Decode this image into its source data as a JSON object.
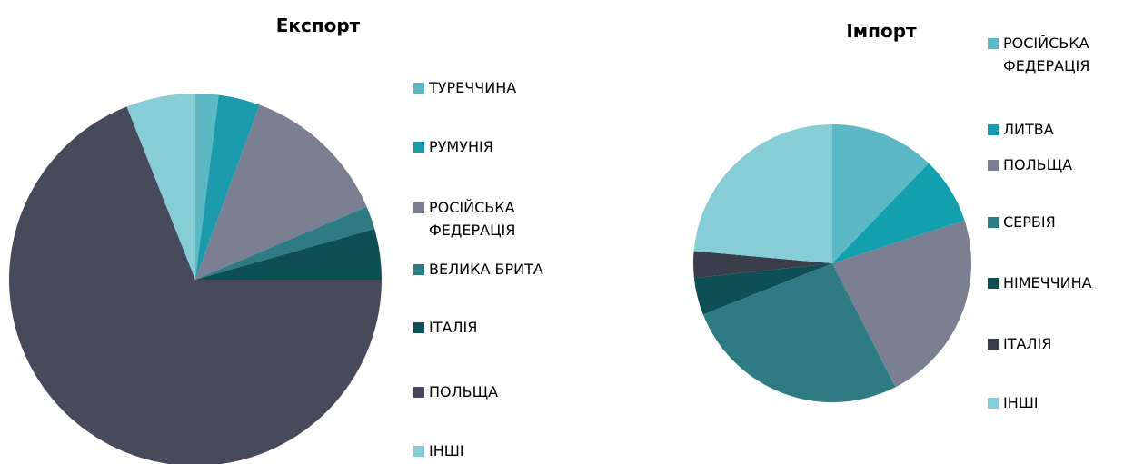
{
  "chart_data": [
    {
      "type": "pie",
      "title": "Експорт",
      "categories": [
        "ТУРЕЧЧИНА",
        "РУМУНІЯ",
        "РОСІЙСЬКА ФЕДЕРАЦІЯ",
        "ВЕЛИКА БРИТА",
        "ІТАЛІЯ",
        "ПОЛЬЩА",
        "ІНШІ"
      ],
      "values": [
        2,
        3.6,
        13,
        2,
        4.4,
        69,
        6
      ],
      "colors": [
        "#5bb8c4",
        "#1a9aaa",
        "#7a7f91",
        "#2e7b83",
        "#0d4f55",
        "#474a5a",
        "#86cdd6"
      ]
    },
    {
      "type": "pie",
      "title": "Імпорт",
      "categories": [
        "РОСІЙСЬКА ФЕДЕРАЦІЯ",
        "ЛИТВА",
        "ПОЛЬЩА",
        "СЕРБІЯ",
        "НІМЕЧЧИНА",
        "ІТАЛІЯ",
        "ІНШІ"
      ],
      "values": [
        12.2,
        7.8,
        22.5,
        26.5,
        4.3,
        3.1,
        23.6
      ],
      "colors": [
        "#5bb8c4",
        "#12a0ae",
        "#7a7f91",
        "#2e7b83",
        "#0d4f55",
        "#3a3d4a",
        "#86cdd6"
      ]
    }
  ]
}
